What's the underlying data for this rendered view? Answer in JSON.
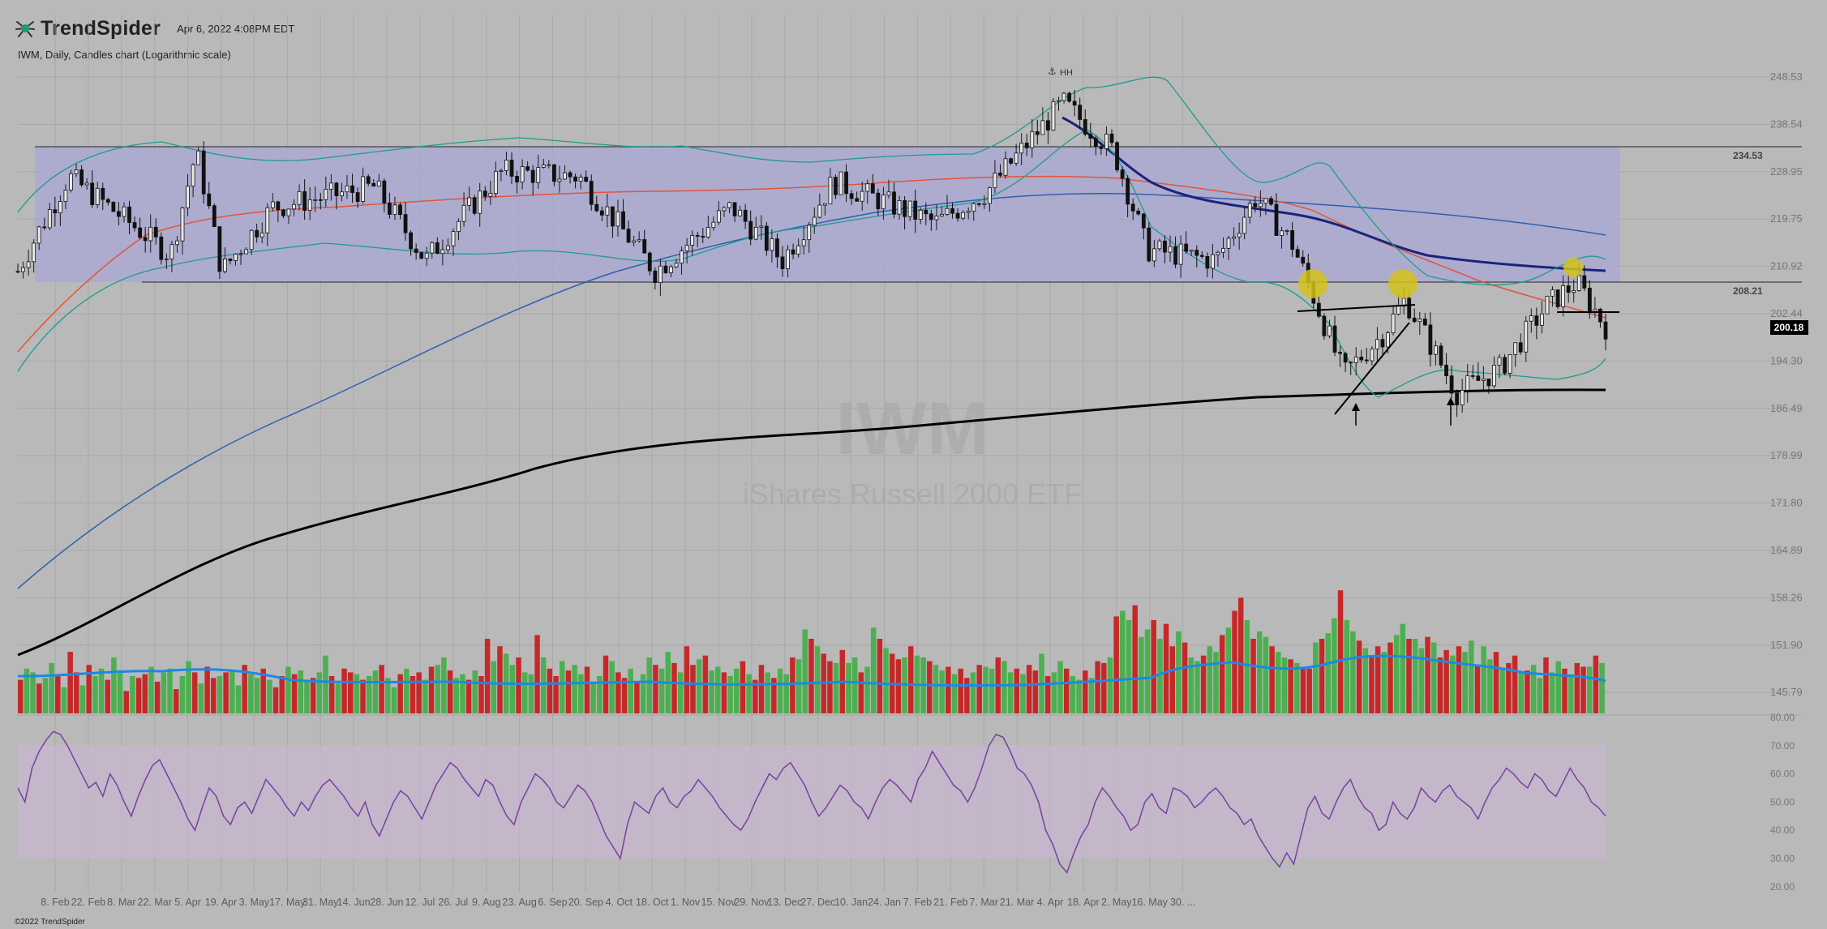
{
  "app": {
    "brand": "TrendSpider",
    "timestamp": "Apr 6, 2022 4:08PM EDT",
    "chart_description": "IWM, Daily, Candles chart (Logarithmic scale)",
    "copyright": "©2022 TrendSpider"
  },
  "watermark": {
    "symbol": "IWM",
    "name": "iShares Russell 2000 ETF"
  },
  "annotations": {
    "hh_label": "HH",
    "resistance_label": "234.53",
    "support_label": "208.21",
    "last_price": "200.18"
  },
  "colors": {
    "background": "#b9b9b9",
    "range_box": "#a9a8d6",
    "up_candle": "#4caf50",
    "down_candle": "#c62828",
    "volume_ma": "#1e88e5",
    "sma200": "#000000",
    "sma50_fast": "#1a237e",
    "rsi_line": "#7b3fa0",
    "rsi_band": "#c7b7d0",
    "highlight_circle": "#d4c21a"
  },
  "chart_data": [
    {
      "type": "candlestick",
      "symbol": "IWM",
      "scale": "log",
      "y_ticks": [
        248.53,
        238.54,
        228.95,
        219.75,
        210.92,
        202.44,
        194.3,
        186.49,
        178.99,
        171.8,
        164.89,
        158.26,
        151.9,
        145.79
      ],
      "x_ticks": [
        "8. Feb",
        "22. Feb",
        "8. Mar",
        "22. Mar",
        "5. Apr",
        "19. Apr",
        "3. May",
        "17. May",
        "31. May",
        "14. Jun",
        "28. Jun",
        "12. Jul",
        "26. Jul",
        "9. Aug",
        "23. Aug",
        "6. Sep",
        "20. Sep",
        "4. Oct",
        "18. Oct",
        "1. Nov",
        "15. Nov",
        "29. Nov",
        "13. Dec",
        "27. Dec",
        "10. Jan",
        "24. Jan",
        "7. Feb",
        "21. Feb",
        "7. Mar",
        "21. Mar",
        "4. Apr",
        "18. Apr",
        "2. May",
        "16. May",
        "30. ..."
      ],
      "range_box": {
        "top": 234.53,
        "bottom": 208.21
      },
      "last_price": 200.18,
      "price_path": [
        {
          "x": "2021-01-25",
          "close": 210
        },
        {
          "x": "2021-02-08",
          "close": 228
        },
        {
          "x": "2021-03-08",
          "close": 213
        },
        {
          "x": "2021-03-15",
          "close": 233
        },
        {
          "x": "2021-03-22",
          "close": 210
        },
        {
          "x": "2021-04-05",
          "close": 222
        },
        {
          "x": "2021-05-03",
          "close": 226
        },
        {
          "x": "2021-05-17",
          "close": 212
        },
        {
          "x": "2021-06-07",
          "close": 229
        },
        {
          "x": "2021-06-28",
          "close": 228
        },
        {
          "x": "2021-07-19",
          "close": 210
        },
        {
          "x": "2021-08-09",
          "close": 222
        },
        {
          "x": "2021-08-23",
          "close": 212
        },
        {
          "x": "2021-09-06",
          "close": 227
        },
        {
          "x": "2021-10-04",
          "close": 219
        },
        {
          "x": "2021-10-18",
          "close": 225
        },
        {
          "x": "2021-11-08",
          "close": 243
        },
        {
          "x": "2021-11-22",
          "close": 233
        },
        {
          "x": "2021-12-01",
          "close": 214
        },
        {
          "x": "2021-12-20",
          "close": 212
        },
        {
          "x": "2021-12-31",
          "close": 224
        },
        {
          "x": "2022-01-10",
          "close": 215
        },
        {
          "x": "2022-01-24",
          "close": 192
        },
        {
          "x": "2022-02-04",
          "close": 199
        },
        {
          "x": "2022-02-10",
          "close": 205
        },
        {
          "x": "2022-02-24",
          "close": 189
        },
        {
          "x": "2022-03-08",
          "close": 193
        },
        {
          "x": "2022-03-21",
          "close": 204
        },
        {
          "x": "2022-03-29",
          "close": 208
        },
        {
          "x": "2022-04-06",
          "close": 200.18
        }
      ]
    },
    {
      "type": "bar",
      "panel": "volume",
      "values": [
        18,
        24,
        22,
        16,
        19,
        27,
        20,
        14,
        33,
        22,
        15,
        26,
        20,
        24,
        18,
        30,
        23,
        12,
        20,
        19,
        21,
        25,
        17,
        22,
        24,
        13,
        20,
        28,
        22,
        16,
        25,
        19,
        20,
        22,
        23,
        15,
        26,
        21,
        19,
        24,
        18,
        14,
        20,
        25,
        21,
        23,
        17,
        19,
        22,
        31,
        20,
        16,
        24,
        22,
        21,
        18,
        20,
        23,
        26,
        19,
        14,
        21,
        24,
        20,
        22,
        18,
        25,
        26,
        30,
        23,
        19,
        21,
        18,
        23,
        20,
        40,
        28,
        36,
        32,
        26,
        30,
        22,
        21,
        42,
        30,
        24,
        20,
        28,
        23,
        26,
        21,
        25,
        17,
        20,
        31,
        28,
        22,
        19,
        24,
        17,
        21,
        30,
        26,
        24,
        33,
        27,
        22,
        36,
        26,
        29,
        31,
        23,
        25,
        22,
        20,
        24,
        28,
        21,
        18,
        26,
        22,
        19,
        24,
        21,
        30,
        29,
        45,
        40,
        36,
        32,
        28,
        27,
        34,
        27,
        30,
        22,
        25,
        46,
        40,
        35,
        32,
        29,
        30,
        36,
        31,
        30,
        28,
        26,
        23,
        25,
        21,
        24,
        19,
        22,
        26,
        25,
        24,
        30,
        28,
        22,
        24,
        21,
        26,
        23,
        32,
        20,
        22,
        28,
        24,
        20,
        18,
        23,
        19,
        28,
        27,
        30,
        52,
        55,
        50,
        58,
        41,
        45,
        50,
        40,
        48,
        36,
        44,
        38,
        30,
        28,
        31,
        36,
        33,
        42,
        46,
        55,
        62,
        50,
        40,
        44,
        41,
        36,
        33,
        30,
        29,
        27,
        25,
        24,
        38,
        40,
        43,
        51,
        66,
        50,
        44,
        39,
        35,
        30,
        36,
        33,
        38,
        42,
        48,
        40,
        40,
        35,
        41,
        38,
        30,
        34,
        31,
        36,
        33,
        39,
        26,
        36,
        29,
        33,
        24,
        27,
        31,
        22,
        23,
        26,
        19,
        30,
        22,
        28,
        24,
        21,
        27,
        25,
        25,
        31,
        27
      ]
    },
    {
      "type": "line",
      "panel": "rsi",
      "y_ticks": [
        80,
        70,
        60,
        50,
        40,
        30,
        20
      ],
      "band": [
        30,
        70
      ],
      "values": [
        55,
        50,
        62,
        68,
        72,
        75,
        74,
        70,
        65,
        60,
        55,
        57,
        52,
        60,
        56,
        50,
        45,
        52,
        58,
        63,
        65,
        60,
        55,
        50,
        44,
        40,
        48,
        55,
        52,
        45,
        42,
        48,
        50,
        46,
        52,
        58,
        55,
        52,
        48,
        45,
        50,
        47,
        52,
        56,
        58,
        55,
        52,
        48,
        45,
        50,
        42,
        38,
        44,
        50,
        54,
        52,
        48,
        44,
        50,
        56,
        60,
        64,
        62,
        58,
        55,
        52,
        58,
        56,
        50,
        45,
        42,
        50,
        55,
        60,
        58,
        55,
        50,
        48,
        52,
        56,
        54,
        50,
        44,
        38,
        34,
        30,
        42,
        50,
        48,
        46,
        52,
        55,
        50,
        48,
        52,
        54,
        58,
        55,
        52,
        48,
        45,
        42,
        40,
        44,
        50,
        55,
        60,
        58,
        62,
        64,
        60,
        56,
        50,
        45,
        48,
        52,
        56,
        54,
        50,
        48,
        44,
        50,
        55,
        58,
        56,
        53,
        50,
        58,
        62,
        68,
        64,
        60,
        56,
        54,
        50,
        55,
        62,
        70,
        74,
        73,
        68,
        62,
        60,
        56,
        50,
        40,
        35,
        28,
        25,
        32,
        38,
        42,
        50,
        55,
        52,
        48,
        45,
        40,
        42,
        50,
        53,
        48,
        46,
        55,
        54,
        52,
        48,
        50,
        53,
        55,
        52,
        48,
        46,
        42,
        44,
        38,
        34,
        30,
        27,
        32,
        28,
        38,
        48,
        52,
        46,
        44,
        50,
        55,
        58,
        52,
        48,
        46,
        40,
        42,
        50,
        46,
        44,
        48,
        55,
        52,
        50,
        54,
        56,
        52,
        50,
        48,
        44,
        50,
        55,
        58,
        62,
        60,
        57,
        55,
        60,
        58,
        54,
        52,
        57,
        62,
        58,
        55,
        50,
        48,
        45
      ]
    }
  ]
}
